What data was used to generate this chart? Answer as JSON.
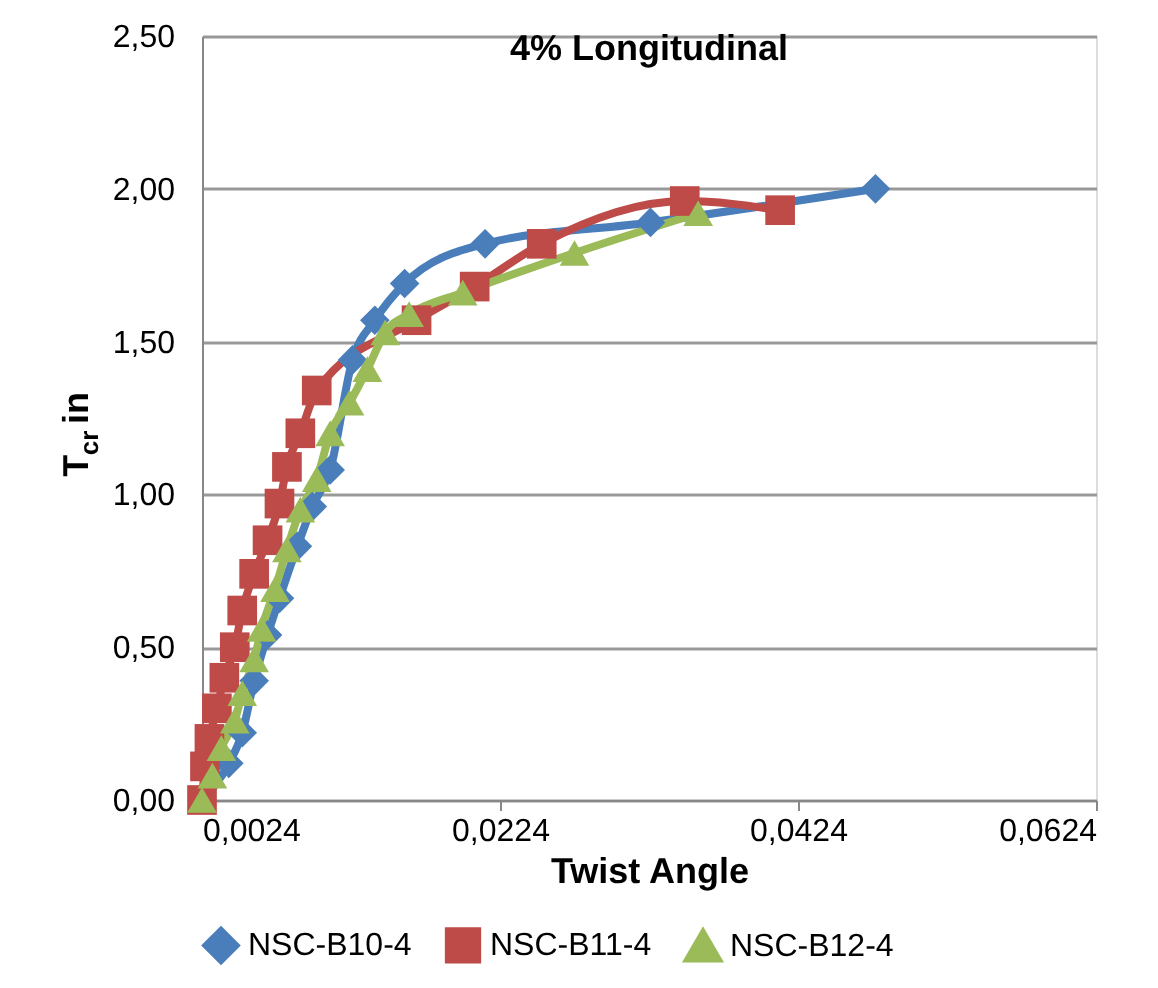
{
  "chart_data": {
    "type": "line",
    "title": "4% Longitudinal",
    "xlabel": "Twist Angle",
    "ylabel": "T$_{cr}$ in",
    "xlim": [
      0.0024,
      0.0624
    ],
    "xticks": [
      {
        "value": 0.0024,
        "label": "0,0024"
      },
      {
        "value": 0.0224,
        "label": "0,0224"
      },
      {
        "value": 0.0424,
        "label": "0,0424"
      },
      {
        "value": 0.0624,
        "label": "0,0624"
      }
    ],
    "ylim": [
      0,
      2.5
    ],
    "yticks": [
      {
        "value": 0,
        "label": "0,00"
      },
      {
        "value": 0.5,
        "label": "0,50"
      },
      {
        "value": 1,
        "label": "1,00"
      },
      {
        "value": 1.5,
        "label": "1,50"
      },
      {
        "value": 2,
        "label": "2,00"
      },
      {
        "value": 2.5,
        "label": "2,50"
      }
    ],
    "grid": "y",
    "legend": "bottom",
    "line_style": "solid",
    "series": [
      {
        "name": "NSC-B10-4",
        "color": "#4a7ebb",
        "marker": "diamond",
        "x": [
          0.0024,
          0.0042,
          0.0051,
          0.0059,
          0.0068,
          0.0076,
          0.0088,
          0.0098,
          0.011,
          0.0125,
          0.014,
          0.016,
          0.0214,
          0.0325,
          0.0476
        ],
        "values": [
          0,
          0.12,
          0.22,
          0.39,
          0.54,
          0.66,
          0.83,
          0.96,
          1.08,
          1.44,
          1.57,
          1.69,
          1.82,
          1.89,
          2.0
        ]
      },
      {
        "name": "NSC-B11-4",
        "color": "#be4b48",
        "marker": "square",
        "x": [
          0.0024,
          0.0026,
          0.0029,
          0.0034,
          0.0039,
          0.0046,
          0.0051,
          0.0059,
          0.0068,
          0.0076,
          0.0081,
          0.009,
          0.0101,
          0.0168,
          0.0207,
          0.0252,
          0.0348,
          0.0412
        ],
        "values": [
          0,
          0.11,
          0.2,
          0.3,
          0.4,
          0.5,
          0.62,
          0.74,
          0.85,
          0.97,
          1.09,
          1.2,
          1.34,
          1.57,
          1.68,
          1.82,
          1.96,
          1.93
        ]
      },
      {
        "name": "NSC-B12-4",
        "color": "#9bbb59",
        "marker": "triangle",
        "x": [
          0.0024,
          0.0031,
          0.0037,
          0.0046,
          0.0051,
          0.0059,
          0.0064,
          0.0073,
          0.0081,
          0.009,
          0.0101,
          0.011,
          0.0123,
          0.0135,
          0.0147,
          0.0163,
          0.0199,
          0.0274,
          0.0357
        ],
        "values": [
          0,
          0.08,
          0.17,
          0.26,
          0.35,
          0.46,
          0.56,
          0.69,
          0.82,
          0.95,
          1.05,
          1.2,
          1.3,
          1.41,
          1.53,
          1.59,
          1.66,
          1.79,
          1.92
        ]
      }
    ]
  }
}
